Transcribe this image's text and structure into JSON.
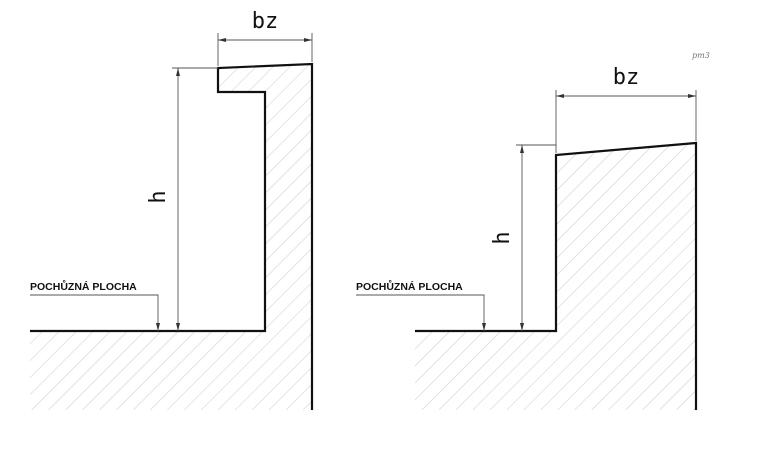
{
  "diagrams": [
    {
      "dimension_width_label": "bz",
      "dimension_height_label": "h",
      "walking_surface_label": "POCHŮZNÁ PLOCHA"
    },
    {
      "dimension_width_label": "bz",
      "dimension_height_label": "h",
      "walking_surface_label": "POCHŮZNÁ PLOCHA"
    }
  ],
  "signature": "pm3"
}
